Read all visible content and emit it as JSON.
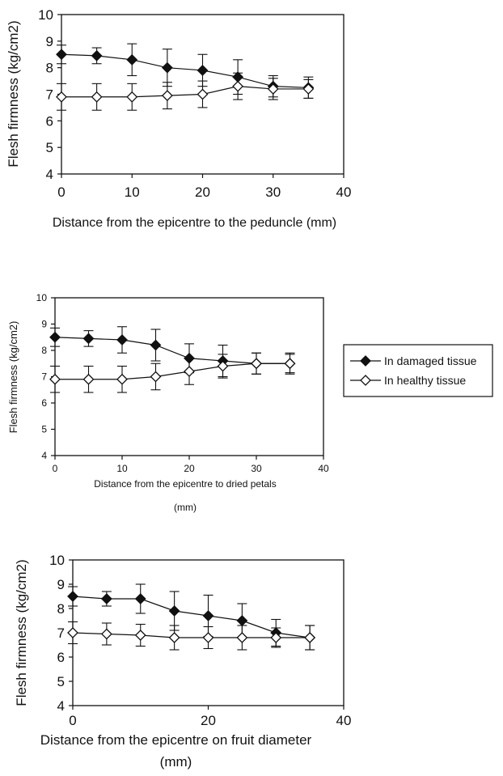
{
  "chart_data": [
    {
      "type": "line",
      "xlabel": "Distance from the epicentre to the peduncle (mm)",
      "ylabel": "Flesh firmness (kg/cm2)",
      "xlim": [
        0,
        40
      ],
      "ylim": [
        4,
        10
      ],
      "xticks": [
        "0",
        "10",
        "20",
        "30",
        "40"
      ],
      "yticks": [
        "4",
        "5",
        "6",
        "7",
        "8",
        "9",
        "10"
      ],
      "x": [
        0,
        5,
        10,
        15,
        20,
        25,
        30,
        35
      ],
      "series": [
        {
          "name": "In damaged tissue",
          "marker": "filled-diamond",
          "values": [
            8.5,
            8.45,
            8.3,
            8.0,
            7.9,
            7.65,
            7.3,
            7.25
          ],
          "error": [
            0.35,
            0.3,
            0.6,
            0.7,
            0.6,
            0.65,
            0.4,
            0.4
          ]
        },
        {
          "name": "In healthy tissue",
          "marker": "open-diamond",
          "values": [
            6.9,
            6.9,
            6.9,
            6.95,
            7.0,
            7.3,
            7.2,
            7.2
          ],
          "error": [
            0.5,
            0.5,
            0.5,
            0.5,
            0.5,
            0.5,
            0.4,
            0.35
          ]
        }
      ]
    },
    {
      "type": "line",
      "xlabel": "Distance from the epicentre to dried petals (mm)",
      "ylabel": "Flesh firmness (kg/cm2)",
      "xlim": [
        0,
        40
      ],
      "ylim": [
        4,
        10
      ],
      "xticks": [
        "0",
        "10",
        "20",
        "30",
        "40"
      ],
      "yticks": [
        "4",
        "5",
        "6",
        "7",
        "8",
        "9",
        "10"
      ],
      "legend": {
        "placement": "right",
        "entries": [
          "In damaged tissue",
          "In healthy tissue"
        ]
      },
      "x": [
        0,
        5,
        10,
        15,
        20,
        25,
        30,
        35
      ],
      "series": [
        {
          "name": "In damaged tissue",
          "marker": "filled-diamond",
          "values": [
            8.5,
            8.45,
            8.4,
            8.2,
            7.7,
            7.6,
            7.5,
            7.5
          ],
          "error": [
            0.35,
            0.3,
            0.5,
            0.6,
            0.55,
            0.6,
            0.4,
            0.4
          ]
        },
        {
          "name": "In healthy tissue",
          "marker": "open-diamond",
          "values": [
            6.9,
            6.9,
            6.9,
            7.0,
            7.2,
            7.4,
            7.5,
            7.5
          ],
          "error": [
            0.5,
            0.5,
            0.5,
            0.5,
            0.5,
            0.45,
            0.4,
            0.35
          ]
        }
      ]
    },
    {
      "type": "line",
      "xlabel": "Distance from the epicentre on fruit diameter (mm)",
      "ylabel": "Flesh firmness (kg/cm2)",
      "xlim": [
        0,
        40
      ],
      "ylim": [
        4,
        10
      ],
      "xticks": [
        "0",
        "20",
        "40"
      ],
      "yticks": [
        "4",
        "5",
        "6",
        "7",
        "8",
        "9",
        "10"
      ],
      "x": [
        0,
        5,
        10,
        15,
        20,
        25,
        30,
        35
      ],
      "series": [
        {
          "name": "In damaged tissue",
          "marker": "filled-diamond",
          "values": [
            8.5,
            8.4,
            8.4,
            7.9,
            7.7,
            7.5,
            7.0,
            6.8
          ],
          "error": [
            0.4,
            0.3,
            0.6,
            0.8,
            0.85,
            0.7,
            0.55,
            0.5
          ]
        },
        {
          "name": "In healthy tissue",
          "marker": "open-diamond",
          "values": [
            7.0,
            6.95,
            6.9,
            6.8,
            6.8,
            6.8,
            6.8,
            6.8
          ],
          "error": [
            0.45,
            0.45,
            0.45,
            0.5,
            0.45,
            0.5,
            0.4,
            0.5
          ]
        }
      ]
    }
  ]
}
